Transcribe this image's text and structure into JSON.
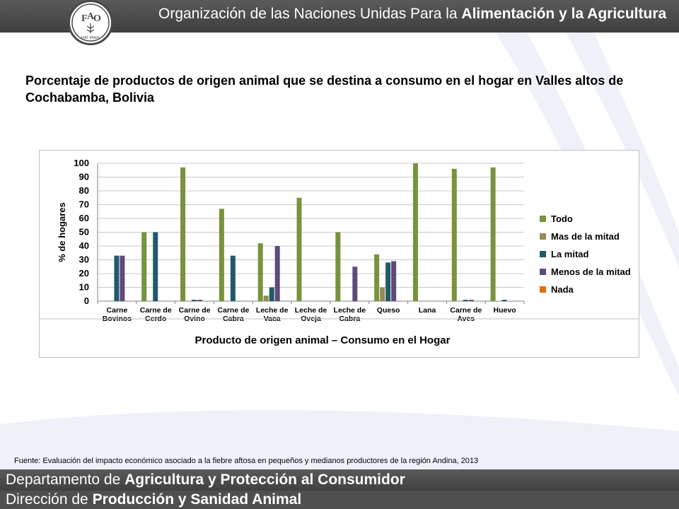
{
  "header": {
    "org_prefix": "Organización de las Naciones Unidas Para la ",
    "org_bold": "Alimentación y la Agricultura",
    "logo_text": "FIAT PANIS",
    "logo_letters": [
      "F",
      "A",
      "O"
    ]
  },
  "slide_title": "Porcentaje de productos de origen animal que se destina a consumo en el hogar en Valles altos de Cochabamba, Bolivia",
  "chart_data": {
    "type": "bar",
    "title": "",
    "xlabel": "Producto de origen animal – Consumo en el Hogar",
    "ylabel": "% de hogares",
    "ylim": [
      0,
      100
    ],
    "yticks": [
      0,
      10,
      20,
      30,
      40,
      50,
      60,
      70,
      80,
      90,
      100
    ],
    "grid": true,
    "legend_position": "right",
    "categories": [
      [
        "Carne",
        "Bovinos"
      ],
      [
        "Carne de",
        "Cerdo"
      ],
      [
        "Carne de",
        "Ovino"
      ],
      [
        "Carne de",
        "Cabra"
      ],
      [
        "Leche de",
        "Vaca"
      ],
      [
        "Leche de",
        "Oveja"
      ],
      [
        "Leche de",
        "Cabra"
      ],
      [
        "Queso"
      ],
      [
        "Lana"
      ],
      [
        "Carne de",
        "Aves"
      ],
      [
        "Huevo"
      ]
    ],
    "series": [
      {
        "name": "Todo",
        "color": "#77933c",
        "values": [
          0,
          50,
          97,
          67,
          42,
          75,
          50,
          34,
          100,
          96,
          97
        ]
      },
      {
        "name": "Mas de la mitad",
        "color": "#948a54",
        "values": [
          0,
          0,
          0,
          0,
          4,
          0,
          0,
          10,
          0,
          0,
          0
        ]
      },
      {
        "name": "La mitad",
        "color": "#215968",
        "values": [
          33,
          50,
          1,
          33,
          10,
          0,
          0,
          28,
          0,
          1,
          1
        ]
      },
      {
        "name": "Menos de la mitad",
        "color": "#604a7b",
        "values": [
          33,
          0,
          1,
          0,
          40,
          0,
          25,
          29,
          0,
          1,
          0
        ]
      },
      {
        "name": "Nada",
        "color": "#e46c0a",
        "values": [
          0,
          0,
          0,
          0,
          0,
          0,
          0,
          0,
          0,
          0,
          0
        ]
      }
    ]
  },
  "source": "Fuente: Evaluación del impacto económico asociado a la fiebre aftosa en pequeños y medianos productores de la región Andina, 2013",
  "footer": {
    "line1_prefix": "Departamento de ",
    "line1_bold": "Agricultura y Protección al Consumidor",
    "line2_prefix": "Dirección de ",
    "line2_bold": "Producción y Sanidad Animal"
  }
}
